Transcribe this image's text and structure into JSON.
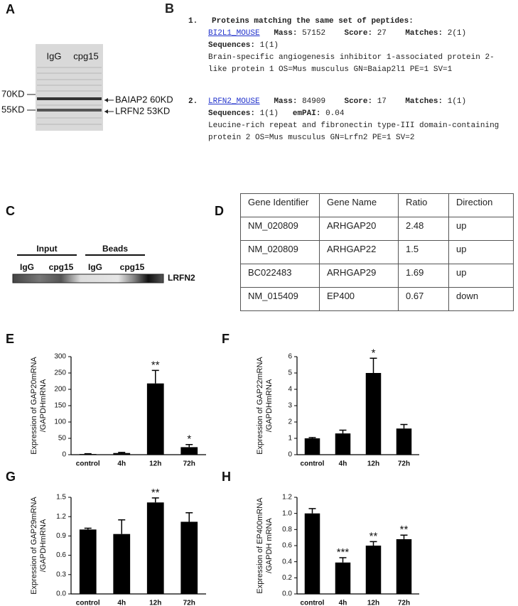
{
  "panel_a": {
    "letter": "A",
    "lanes": [
      "IgG",
      "cpg15"
    ],
    "markers": [
      "70KD",
      "55KD"
    ],
    "bands": [
      "BAIAP2 60KD",
      "LRFN2 53KD"
    ]
  },
  "panel_b": {
    "letter": "B",
    "heading": "Proteins matching the same set of peptides:",
    "field_labels": {
      "mass": "Mass:",
      "score": "Score:",
      "matches": "Matches:",
      "sequences": "Sequences:",
      "empai": "emPAI:"
    },
    "entries": [
      {
        "number": "1.",
        "id": "BI2L1_MOUSE",
        "mass": 57152,
        "score": 27,
        "matches": "2(1)",
        "sequences": "1(1)",
        "description": "Brain-specific angiogenesis inhibitor 1-associated protein 2-like protein 1 OS=Mus musculus GN=Baiap2l1 PE=1 SV=1"
      },
      {
        "number": "2.",
        "id": "LRFN2_MOUSE",
        "mass": 84909,
        "score": 17,
        "matches": "1(1)",
        "sequences": "1(1)",
        "empai": 0.04,
        "description": "Leucine-rich repeat and fibronectin type-III domain-containing protein 2 OS=Mus musculus GN=Lrfn2 PE=1 SV=2"
      }
    ]
  },
  "panel_c": {
    "letter": "C",
    "groups": [
      "Input",
      "Beads"
    ],
    "lanes": [
      "IgG",
      "cpg15",
      "IgG",
      "cpg15"
    ],
    "band": "LRFN2"
  },
  "panel_d": {
    "letter": "D",
    "table": {
      "header": [
        "Gene Identifier",
        "Gene Name",
        "Ratio",
        "Direction"
      ],
      "rows": [
        [
          "NM_020809",
          "ARHGAP20",
          2.48,
          "up"
        ],
        [
          "NM_020809",
          "ARHGAP22",
          1.5,
          "up"
        ],
        [
          "BC022483",
          "ARHGAP29",
          1.69,
          "up"
        ],
        [
          "NM_015409",
          "EP400",
          0.67,
          "down"
        ]
      ]
    }
  },
  "chart_data": [
    {
      "type": "bar",
      "panel_label": "E",
      "ylabel": [
        "Expression of GAP20mRNA",
        "/GAPDHmRNA"
      ],
      "color": "#000000",
      "categories": [
        "control",
        "4h",
        "12h",
        "72h"
      ],
      "values": [
        2,
        5,
        218,
        23
      ],
      "errors": [
        1,
        2,
        40,
        8
      ],
      "significance": [
        null,
        null,
        "**",
        "*"
      ],
      "ylim": [
        0,
        300
      ],
      "yticks": [
        0,
        50,
        100,
        150,
        200,
        250,
        300
      ]
    },
    {
      "type": "bar",
      "panel_label": "F",
      "ylabel": [
        "Expression of GAP22mRNA",
        "/GAPDHmRNA"
      ],
      "color": "#000000",
      "categories": [
        "control",
        "4h",
        "12h",
        "72h"
      ],
      "values": [
        1.0,
        1.3,
        5.0,
        1.6
      ],
      "errors": [
        0.05,
        0.2,
        0.9,
        0.25
      ],
      "significance": [
        null,
        null,
        "*",
        null
      ],
      "ylim": [
        0,
        6
      ],
      "yticks": [
        0,
        1,
        2,
        3,
        4,
        5,
        6
      ]
    },
    {
      "type": "bar",
      "panel_label": "G",
      "ylabel": [
        "Expression of GAP29mRNA",
        "/GAPDHmRNA"
      ],
      "color": "#000000",
      "categories": [
        "control",
        "4h",
        "12h",
        "72h"
      ],
      "values": [
        1.0,
        0.93,
        1.42,
        1.12
      ],
      "errors": [
        0.02,
        0.22,
        0.07,
        0.14
      ],
      "significance": [
        null,
        null,
        "**",
        null
      ],
      "ylim": [
        0,
        1.5
      ],
      "yticks": [
        {
          "value": 0,
          "label": "0.0"
        },
        0.3,
        0.6,
        0.9,
        1.2,
        1.5
      ]
    },
    {
      "type": "bar",
      "panel_label": "H",
      "ylabel": [
        "Expression of EP400mRNA",
        "/GAPDH mRNA"
      ],
      "color": "#000000",
      "categories": [
        "control",
        "4h",
        "12h",
        "72h"
      ],
      "values": [
        1.0,
        0.39,
        0.6,
        0.68
      ],
      "errors": [
        0.06,
        0.06,
        0.05,
        0.05
      ],
      "significance": [
        null,
        "***",
        "**",
        "**"
      ],
      "ylim": [
        0,
        1.2
      ],
      "yticks": [
        {
          "value": 0,
          "label": "0.0"
        },
        0.2,
        0.4,
        0.6,
        0.8,
        {
          "value": 1,
          "label": "1.0"
        },
        1.2
      ]
    }
  ]
}
